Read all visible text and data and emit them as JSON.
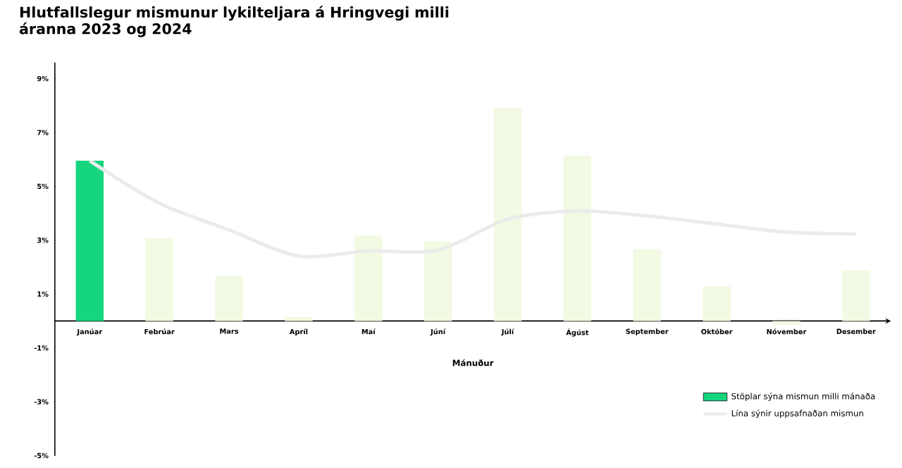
{
  "chart_data": {
    "type": "bar",
    "title": "Hlutfallslegur mismunur lykilteljara á Hringvegi milli áranna 2023 og 2024",
    "xlabel": "Mánuður",
    "categories": [
      "Janúar",
      "Febrúar",
      "Mars",
      "Apríl",
      "Maí",
      "Júní",
      "Júlí",
      "Ágúst",
      "September",
      "Október",
      "Nóvember",
      "Desember"
    ],
    "series": [
      {
        "name": "Stöplar sýna mismun milli mánaða",
        "color": "#15d67e",
        "colors": [
          "#15d67e",
          "#f2fae3",
          "#f2fae3",
          "#f2fae3",
          "#f2fae3",
          "#f2fae3",
          "#f2fae3",
          "#f2fae3",
          "#f2fae3",
          "#f2fae3",
          "#f2fae3",
          "#f2fae3"
        ],
        "values": [
          5.95,
          3.08,
          1.68,
          0.14,
          3.18,
          2.96,
          7.91,
          6.14,
          2.67,
          1.3,
          -0.15,
          1.88
        ]
      },
      {
        "name": "Lína sýnir uppsafnaðan mismun",
        "type": "line",
        "color": "#ebebeb",
        "values": [
          5.95,
          4.37,
          3.38,
          2.41,
          2.6,
          2.63,
          3.78,
          4.09,
          3.9,
          3.6,
          3.3,
          3.23
        ]
      }
    ],
    "ylim": [
      -5,
      9.6
    ],
    "yticks": [
      {
        "value": -5,
        "label": "-5%"
      },
      {
        "value": -3,
        "label": "-3%"
      },
      {
        "value": -1,
        "label": "-1%"
      },
      {
        "value": 1,
        "label": "1%"
      },
      {
        "value": 3,
        "label": "3%"
      },
      {
        "value": 5,
        "label": "5%"
      },
      {
        "value": 7,
        "label": "7%"
      },
      {
        "value": 9,
        "label": "9%"
      }
    ],
    "legend": "bottom right"
  }
}
